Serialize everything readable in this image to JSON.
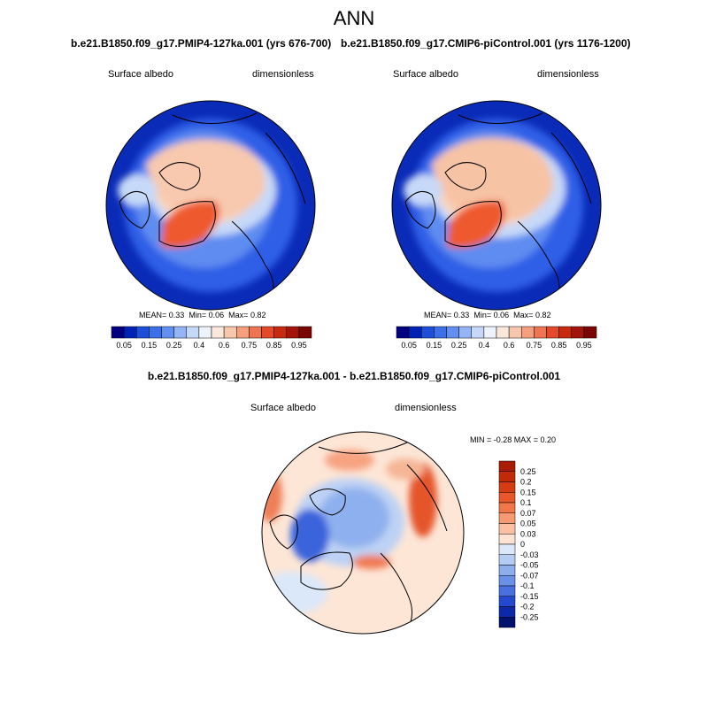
{
  "figure": {
    "title": "ANN",
    "variable": "Surface albedo",
    "units": "dimensionless"
  },
  "panels": [
    {
      "run": "b.e21.B1850.f09_g17.PMIP4-127ka.001 (yrs 676-700)",
      "variable": "Surface albedo",
      "units": "dimensionless",
      "stats": {
        "mean_label": "MEAN=",
        "mean": "0.33",
        "min_label": "Min=",
        "min": "0.06",
        "max_label": "Max=",
        "max": "0.82"
      }
    },
    {
      "run": "b.e21.B1850.f09_g17.CMIP6-piControl.001 (yrs 1176-1200)",
      "variable": "Surface albedo",
      "units": "dimensionless",
      "stats": {
        "mean_label": "MEAN=",
        "mean": "0.33",
        "min_label": "Min=",
        "min": "0.06",
        "max_label": "Max=",
        "max": "0.82"
      }
    }
  ],
  "diff": {
    "title": "b.e21.B1850.f09_g17.PMIP4-127ka.001 - b.e21.B1850.f09_g17.CMIP6-piControl.001",
    "variable": "Surface albedo",
    "units": "dimensionless",
    "minmax": "MIN =  -0.28 MAX =   0.20"
  },
  "chart_data": [
    {
      "type": "heatmap",
      "projection": "north polar stereographic",
      "title": "b.e21.B1850.f09_g17.PMIP4-127ka.001 (yrs 676-700)",
      "colorbar": {
        "labels": [
          "0.05",
          "0.15",
          "0.25",
          "0.4",
          "0.6",
          "0.75",
          "0.85",
          "0.95"
        ],
        "levels": [
          0.05,
          0.1,
          0.15,
          0.2,
          0.25,
          0.3,
          0.4,
          0.5,
          0.6,
          0.7,
          0.75,
          0.8,
          0.85,
          0.9,
          0.95
        ],
        "colors": [
          "#000080",
          "#0023b5",
          "#1d4fd8",
          "#3c6fe8",
          "#6390f0",
          "#93b4f5",
          "#c6d8f8",
          "#eef3fb",
          "#fbe8dc",
          "#f7c7ad",
          "#f4a07f",
          "#ee7452",
          "#e44a2a",
          "#c82a10",
          "#a3140a",
          "#7a0505"
        ]
      },
      "stats": {
        "mean": 0.33,
        "min": 0.06,
        "max": 0.82
      }
    },
    {
      "type": "heatmap",
      "projection": "north polar stereographic",
      "title": "b.e21.B1850.f09_g17.CMIP6-piControl.001 (yrs 1176-1200)",
      "colorbar": {
        "labels": [
          "0.05",
          "0.15",
          "0.25",
          "0.4",
          "0.6",
          "0.75",
          "0.85",
          "0.95"
        ],
        "levels": [
          0.05,
          0.1,
          0.15,
          0.2,
          0.25,
          0.3,
          0.4,
          0.5,
          0.6,
          0.7,
          0.75,
          0.8,
          0.85,
          0.9,
          0.95
        ],
        "colors": [
          "#000080",
          "#0023b5",
          "#1d4fd8",
          "#3c6fe8",
          "#6390f0",
          "#93b4f5",
          "#c6d8f8",
          "#eef3fb",
          "#fbe8dc",
          "#f7c7ad",
          "#f4a07f",
          "#ee7452",
          "#e44a2a",
          "#c82a10",
          "#a3140a",
          "#7a0505"
        ]
      },
      "stats": {
        "mean": 0.33,
        "min": 0.06,
        "max": 0.82
      }
    },
    {
      "type": "heatmap",
      "projection": "north polar stereographic",
      "title": "b.e21.B1850.f09_g17.PMIP4-127ka.001 - b.e21.B1850.f09_g17.CMIP6-piControl.001",
      "colorbar": {
        "labels": [
          "0.25",
          "0.2",
          "0.15",
          "0.1",
          "0.07",
          "0.05",
          "0.03",
          "0",
          "-0.03",
          "-0.05",
          "-0.07",
          "-0.1",
          "-0.15",
          "-0.2",
          "-0.25"
        ],
        "colors": [
          "#a81c04",
          "#c02a08",
          "#d63c12",
          "#e8562a",
          "#f27748",
          "#f79a72",
          "#fbc0a4",
          "#fde3d2",
          "#dbe8fa",
          "#b5cdf3",
          "#8daeec",
          "#6b90e8",
          "#4a6fe1",
          "#2448d0",
          "#0d28a8",
          "#00116e"
        ]
      },
      "stats": {
        "min": -0.28,
        "max": 0.2
      }
    }
  ]
}
